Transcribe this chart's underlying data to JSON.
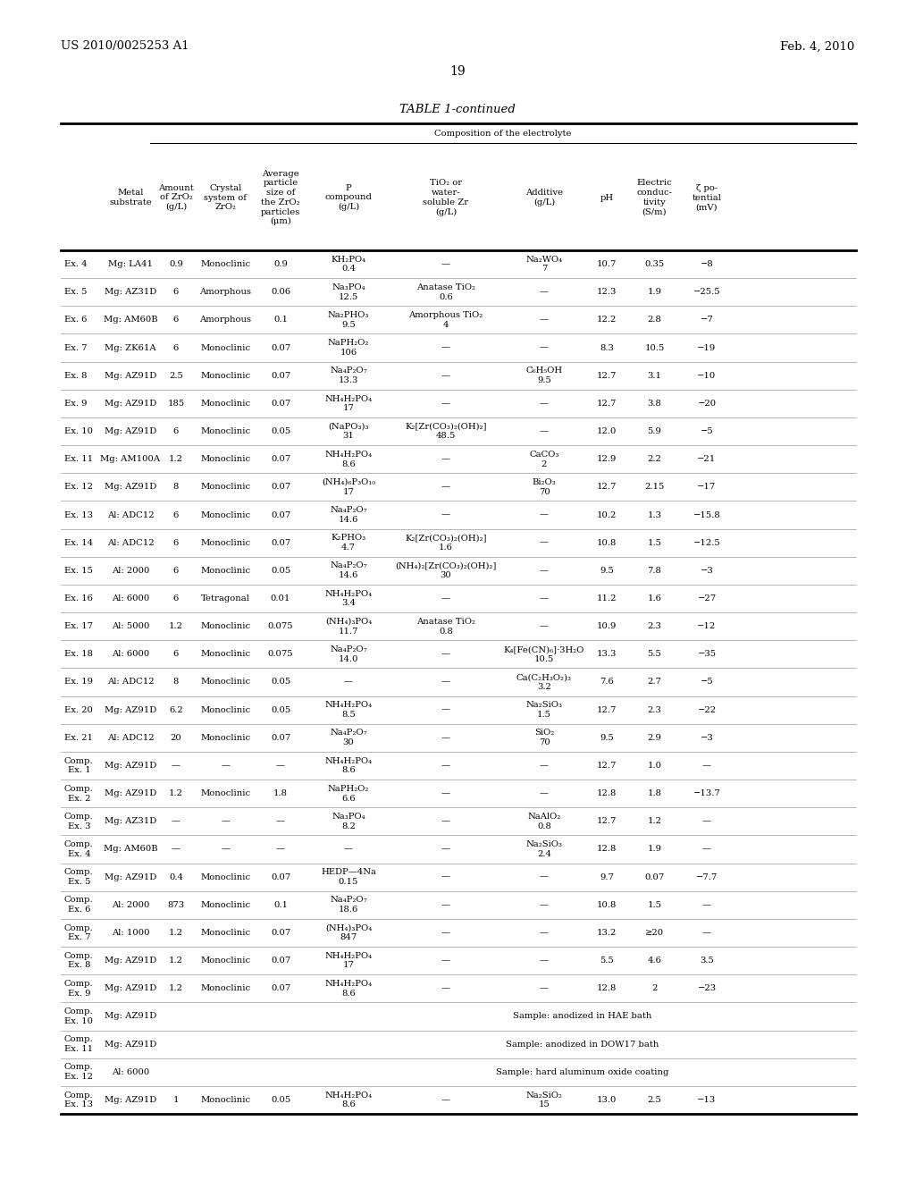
{
  "title_left": "US 2010/0025253 A1",
  "title_right": "Feb. 4, 2010",
  "page_number": "19",
  "table_title": "TABLE 1-continued",
  "composition_header": "Composition of the electrolyte",
  "rows": [
    [
      "Ex. 4",
      "Mg: LA41",
      "0.9",
      "Monoclinic",
      "0.9",
      "KH₂PO₄\n0.4",
      "—",
      "Na₂WO₄\n7",
      "10.7",
      "0.35",
      "−8"
    ],
    [
      "Ex. 5",
      "Mg: AZ31D",
      "6",
      "Amorphous",
      "0.06",
      "Na₃PO₄\n12.5",
      "Anatase TiO₂\n0.6",
      "—",
      "12.3",
      "1.9",
      "−25.5"
    ],
    [
      "Ex. 6",
      "Mg: AM60B",
      "6",
      "Amorphous",
      "0.1",
      "Na₂PHO₃\n9.5",
      "Amorphous TiO₂\n4",
      "—",
      "12.2",
      "2.8",
      "−7"
    ],
    [
      "Ex. 7",
      "Mg: ZK61A",
      "6",
      "Monoclinic",
      "0.07",
      "NaPH₂O₂\n106",
      "—",
      "—",
      "8.3",
      "10.5",
      "−19"
    ],
    [
      "Ex. 8",
      "Mg: AZ91D",
      "2.5",
      "Monoclinic",
      "0.07",
      "Na₄P₂O₇\n13.3",
      "—",
      "C₆H₅OH\n9.5",
      "12.7",
      "3.1",
      "−10"
    ],
    [
      "Ex. 9",
      "Mg: AZ91D",
      "185",
      "Monoclinic",
      "0.07",
      "NH₄H₂PO₄\n17",
      "—",
      "—",
      "12.7",
      "3.8",
      "−20"
    ],
    [
      "Ex. 10",
      "Mg: AZ91D",
      "6",
      "Monoclinic",
      "0.05",
      "(NaPO₃)₃\n31",
      "K₂[Zr(CO₃)₂(OH)₂]\n48.5",
      "—",
      "12.0",
      "5.9",
      "−5"
    ],
    [
      "Ex. 11",
      "Mg: AM100A",
      "1.2",
      "Monoclinic",
      "0.07",
      "NH₄H₂PO₄\n8.6",
      "—",
      "CaCO₃\n2",
      "12.9",
      "2.2",
      "−21"
    ],
    [
      "Ex. 12",
      "Mg: AZ91D",
      "8",
      "Monoclinic",
      "0.07",
      "(NH₄)₆P₃O₁₀\n17",
      "—",
      "Bi₂O₃\n70",
      "12.7",
      "2.15",
      "−17"
    ],
    [
      "Ex. 13",
      "Al: ADC12",
      "6",
      "Monoclinic",
      "0.07",
      "Na₄P₂O₇\n14.6",
      "—",
      "—",
      "10.2",
      "1.3",
      "−15.8"
    ],
    [
      "Ex. 14",
      "Al: ADC12",
      "6",
      "Monoclinic",
      "0.07",
      "K₂PHO₃\n4.7",
      "K₂[Zr(CO₃)₂(OH)₂]\n1.6",
      "—",
      "10.8",
      "1.5",
      "−12.5"
    ],
    [
      "Ex. 15",
      "Al: 2000",
      "6",
      "Monoclinic",
      "0.05",
      "Na₄P₂O₇\n14.6",
      "(NH₄)₂[Zr(CO₃)₂(OH)₂]\n30",
      "—",
      "9.5",
      "7.8",
      "−3"
    ],
    [
      "Ex. 16",
      "Al: 6000",
      "6",
      "Tetragonal",
      "0.01",
      "NH₄H₂PO₄\n3.4",
      "—",
      "—",
      "11.2",
      "1.6",
      "−27"
    ],
    [
      "Ex. 17",
      "Al: 5000",
      "1.2",
      "Monoclinic",
      "0.075",
      "(NH₄)₃PO₄\n11.7",
      "Anatase TiO₂\n0.8",
      "—",
      "10.9",
      "2.3",
      "−12"
    ],
    [
      "Ex. 18",
      "Al: 6000",
      "6",
      "Monoclinic",
      "0.075",
      "Na₄P₂O₇\n14.0",
      "—",
      "K₄[Fe(CN)₆]·3H₂O\n10.5",
      "13.3",
      "5.5",
      "−35"
    ],
    [
      "Ex. 19",
      "Al: ADC12",
      "8",
      "Monoclinic",
      "0.05",
      "—",
      "—",
      "Ca(C₂H₃O₂)₃\n3.2",
      "7.6",
      "2.7",
      "−5"
    ],
    [
      "Ex. 20",
      "Mg: AZ91D",
      "6.2",
      "Monoclinic",
      "0.05",
      "NH₄H₂PO₄\n8.5",
      "—",
      "Na₂SiO₃\n1.5",
      "12.7",
      "2.3",
      "−22"
    ],
    [
      "Ex. 21",
      "Al: ADC12",
      "20",
      "Monoclinic",
      "0.07",
      "Na₄P₂O₇\n30",
      "—",
      "SiO₂\n70",
      "9.5",
      "2.9",
      "−3"
    ],
    [
      "Comp.\nEx. 1",
      "Mg: AZ91D",
      "—",
      "—",
      "—",
      "NH₄H₂PO₄\n8.6",
      "—",
      "—",
      "12.7",
      "1.0",
      "—"
    ],
    [
      "Comp.\nEx. 2",
      "Mg: AZ91D",
      "1.2",
      "Monoclinic",
      "1.8",
      "NaPH₂O₂\n6.6",
      "—",
      "—",
      "12.8",
      "1.8",
      "−13.7"
    ],
    [
      "Comp.\nEx. 3",
      "Mg: AZ31D",
      "—",
      "—",
      "—",
      "Na₃PO₄\n8.2",
      "—",
      "NaAlO₂\n0.8",
      "12.7",
      "1.2",
      "—"
    ],
    [
      "Comp.\nEx. 4",
      "Mg: AM60B",
      "—",
      "—",
      "—",
      "—",
      "—",
      "Na₂SiO₃\n2.4",
      "12.8",
      "1.9",
      "—"
    ],
    [
      "Comp.\nEx. 5",
      "Mg: AZ91D",
      "0.4",
      "Monoclinic",
      "0.07",
      "HEDP—4Na\n0.15",
      "—",
      "—",
      "9.7",
      "0.07",
      "−7.7"
    ],
    [
      "Comp.\nEx. 6",
      "Al: 2000",
      "873",
      "Monoclinic",
      "0.1",
      "Na₄P₂O₇\n18.6",
      "—",
      "—",
      "10.8",
      "1.5",
      "—"
    ],
    [
      "Comp.\nEx. 7",
      "Al: 1000",
      "1.2",
      "Monoclinic",
      "0.07",
      "(NH₄)₃PO₄\n847",
      "—",
      "—",
      "13.2",
      "≥20",
      "—"
    ],
    [
      "Comp.\nEx. 8",
      "Mg: AZ91D",
      "1.2",
      "Monoclinic",
      "0.07",
      "NH₄H₂PO₄\n17",
      "—",
      "—",
      "5.5",
      "4.6",
      "3.5"
    ],
    [
      "Comp.\nEx. 9",
      "Mg: AZ91D",
      "1.2",
      "Monoclinic",
      "0.07",
      "NH₄H₂PO₄\n8.6",
      "—",
      "—",
      "12.8",
      "2",
      "−23"
    ],
    [
      "Comp.\nEx. 10",
      "Mg: AZ91D",
      "",
      "",
      "",
      "SAMPLE_HAE",
      "",
      "",
      "",
      "",
      ""
    ],
    [
      "Comp.\nEx. 11",
      "Mg: AZ91D",
      "",
      "",
      "",
      "SAMPLE_DOW",
      "",
      "",
      "",
      "",
      ""
    ],
    [
      "Comp.\nEx. 12",
      "Al: 6000",
      "",
      "",
      "",
      "SAMPLE_HARD",
      "",
      "",
      "",
      "",
      ""
    ],
    [
      "Comp.\nEx. 13",
      "Mg: AZ91D",
      "1",
      "Monoclinic",
      "0.05",
      "NH₄H₂PO₄\n8.6",
      "—",
      "Na₂SiO₂\n15",
      "13.0",
      "2.5",
      "−13"
    ]
  ],
  "sample_texts": {
    "SAMPLE_HAE": "Sample: anodized in HAE bath",
    "SAMPLE_DOW": "Sample: anodized in DOW17 bath",
    "SAMPLE_HARD": "Sample: hard aluminum oxide coating"
  },
  "bg": "#ffffff",
  "tc": "#000000"
}
